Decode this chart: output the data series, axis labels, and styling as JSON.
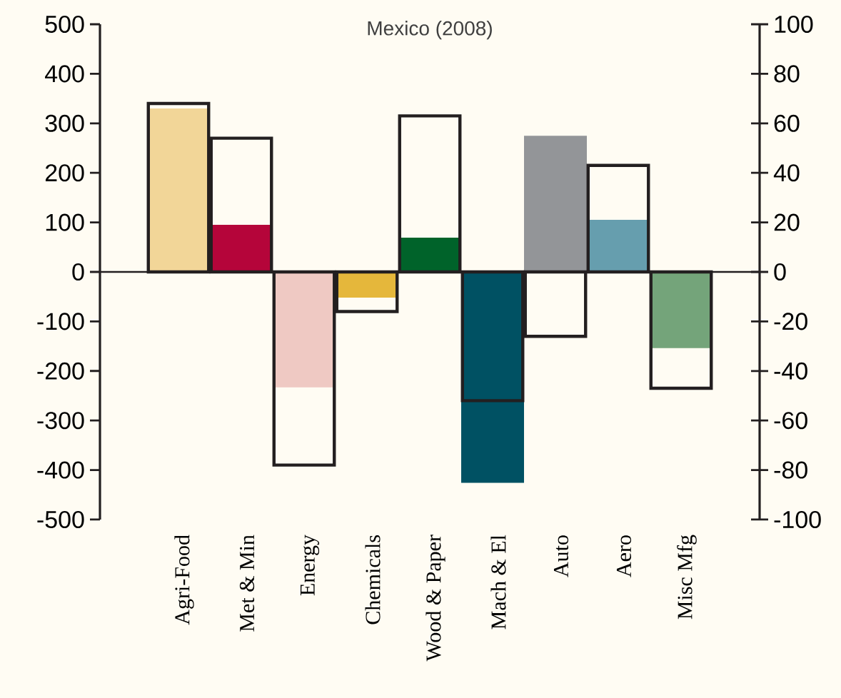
{
  "chart_data": {
    "type": "bar",
    "title": "Mexico (2008)",
    "categories": [
      "Agri-Food",
      "Met & Min",
      "Energy",
      "Chemicals",
      "Wood & Paper",
      "Mach & El",
      "Auto",
      "Aero",
      "Misc Mfg"
    ],
    "ylim": [
      -500,
      500
    ],
    "yticks": [
      -500,
      -400,
      -300,
      -200,
      -100,
      0,
      100,
      200,
      300,
      400,
      500
    ],
    "y2lim": [
      -100,
      100
    ],
    "y2ticks": [
      -100,
      -80,
      -60,
      -40,
      -20,
      0,
      20,
      40,
      60,
      80,
      100
    ],
    "series": [
      {
        "colors": [
          "#f2d698",
          "#b5053a",
          "#efc9c3",
          "#e5b73b",
          "#00632a",
          "#005163",
          "#939598",
          "#669eae",
          "#74a47a"
        ],
        "values": [
          330,
          95,
          -233,
          -52,
          69,
          -426,
          275,
          105,
          -154
        ]
      },
      {
        "axis": "y2",
        "color": "#231f20",
        "values": [
          68,
          54,
          -78,
          -16,
          63,
          -52,
          -26,
          43,
          -47
        ]
      }
    ]
  }
}
